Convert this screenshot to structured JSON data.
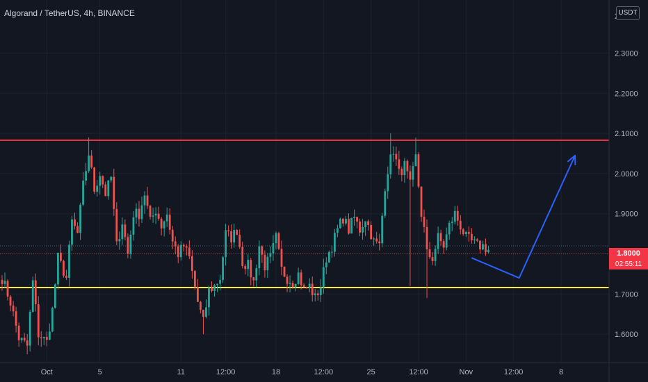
{
  "header": {
    "symbol_title": "Algorand / TetherUS, 4h, BINANCE",
    "currency": "USDT"
  },
  "price_axis": {
    "current_price_label": "1.8000",
    "countdown": "02:55:11",
    "top_partial_label": "2"
  },
  "colors": {
    "background": "#131722",
    "up_candle": "#26a69a",
    "down_candle": "#ef5350",
    "resistance": "#f23645",
    "support": "#ffeb3b",
    "arrow": "#2962ff",
    "grid": "#1e222d",
    "text": "#b2b5be"
  },
  "chart_data": {
    "type": "candlestick",
    "title": "Algorand / TetherUS, 4h, BINANCE",
    "y_unit": "USDT",
    "ylim": [
      1.535,
      2.33
    ],
    "y_ticks": [
      1.6,
      1.7,
      1.8,
      1.9,
      2.0,
      2.1,
      2.2,
      2.3
    ],
    "y_tick_labels": [
      "1.6000",
      "1.7000",
      "1.8000",
      "1.9000",
      "2.0000",
      "2.1000",
      "2.2000",
      "2.3000"
    ],
    "x_tick_labels": [
      "Oct",
      "5",
      "11",
      "12:00",
      "18",
      "12:00",
      "25",
      "12:00",
      "Nov",
      "12:00",
      "8"
    ],
    "x_tick_candle_index": [
      16,
      35,
      64,
      80,
      98,
      115,
      132,
      149,
      166,
      183,
      200
    ],
    "grid": true,
    "current_price": 1.8,
    "horizontal_levels": [
      {
        "name": "resistance",
        "price": 2.083
      },
      {
        "name": "support",
        "price": 1.716
      },
      {
        "name": "last-price-line",
        "price": 1.8
      },
      {
        "name": "last-close-line",
        "price": 1.82
      }
    ],
    "projection": [
      {
        "candle": 168,
        "price": 1.79
      },
      {
        "candle": 185,
        "price": 1.74
      },
      {
        "candle": 205,
        "price": 2.045
      }
    ],
    "close_anchors": [
      [
        0,
        1.74
      ],
      [
        3,
        1.68
      ],
      [
        6,
        1.59
      ],
      [
        9,
        1.57
      ],
      [
        11,
        1.73
      ],
      [
        13,
        1.6
      ],
      [
        16,
        1.58
      ],
      [
        18,
        1.66
      ],
      [
        20,
        1.79
      ],
      [
        23,
        1.74
      ],
      [
        25,
        1.88
      ],
      [
        27,
        1.85
      ],
      [
        29,
        1.97
      ],
      [
        31,
        2.05
      ],
      [
        33,
        1.96
      ],
      [
        35,
        2.0
      ],
      [
        37,
        1.95
      ],
      [
        39,
        1.99
      ],
      [
        41,
        1.82
      ],
      [
        43,
        1.88
      ],
      [
        45,
        1.8
      ],
      [
        47,
        1.9
      ],
      [
        49,
        1.9
      ],
      [
        51,
        1.95
      ],
      [
        53,
        1.88
      ],
      [
        55,
        1.91
      ],
      [
        57,
        1.87
      ],
      [
        59,
        1.9
      ],
      [
        61,
        1.83
      ],
      [
        63,
        1.8
      ],
      [
        65,
        1.82
      ],
      [
        67,
        1.79
      ],
      [
        70,
        1.68
      ],
      [
        72,
        1.63
      ],
      [
        74,
        1.71
      ],
      [
        76,
        1.72
      ],
      [
        78,
        1.74
      ],
      [
        80,
        1.85
      ],
      [
        82,
        1.84
      ],
      [
        84,
        1.86
      ],
      [
        86,
        1.78
      ],
      [
        88,
        1.77
      ],
      [
        90,
        1.73
      ],
      [
        92,
        1.82
      ],
      [
        94,
        1.77
      ],
      [
        96,
        1.79
      ],
      [
        98,
        1.84
      ],
      [
        100,
        1.76
      ],
      [
        102,
        1.74
      ],
      [
        104,
        1.73
      ],
      [
        106,
        1.75
      ],
      [
        108,
        1.71
      ],
      [
        110,
        1.72
      ],
      [
        112,
        1.69
      ],
      [
        114,
        1.72
      ],
      [
        116,
        1.79
      ],
      [
        118,
        1.82
      ],
      [
        120,
        1.86
      ],
      [
        122,
        1.89
      ],
      [
        124,
        1.86
      ],
      [
        126,
        1.89
      ],
      [
        128,
        1.86
      ],
      [
        130,
        1.89
      ],
      [
        132,
        1.85
      ],
      [
        133,
        1.83
      ],
      [
        135,
        1.82
      ],
      [
        137,
        1.97
      ],
      [
        138,
        2.01
      ],
      [
        140,
        2.06
      ],
      [
        142,
        2.0
      ],
      [
        144,
        2.02
      ],
      [
        146,
        1.97
      ],
      [
        148,
        2.04
      ],
      [
        150,
        1.9
      ],
      [
        151,
        1.86
      ],
      [
        152,
        1.8
      ],
      [
        154,
        1.79
      ],
      [
        156,
        1.84
      ],
      [
        158,
        1.82
      ],
      [
        160,
        1.87
      ],
      [
        162,
        1.9
      ],
      [
        164,
        1.87
      ],
      [
        166,
        1.84
      ],
      [
        168,
        1.83
      ],
      [
        170,
        1.82
      ],
      [
        172,
        1.82
      ],
      [
        174,
        1.81
      ]
    ]
  }
}
